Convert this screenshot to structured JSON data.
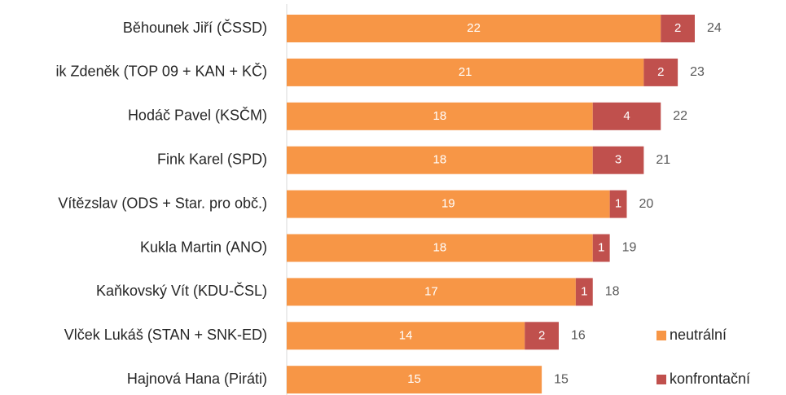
{
  "chart_data": {
    "type": "stacked_barh",
    "categories": [
      "Běhounek Jiří (ČSSD)",
      "ik Zdeněk (TOP 09 + KAN + KČ)",
      "Hodáč Pavel (KSČM)",
      "Fink Karel (SPD)",
      "Vítězslav (ODS + Star. pro obč.)",
      "Kukla Martin (ANO)",
      "Kaňkovský Vít (KDU-ČSL)",
      "Vlček Lukáš (STAN + SNK-ED)",
      "Hajnová Hana (Piráti)"
    ],
    "series": [
      {
        "name": "neutrální",
        "color": "#F79646",
        "values": [
          22,
          21,
          18,
          18,
          19,
          18,
          17,
          14,
          15
        ]
      },
      {
        "name": "konfrontační",
        "color": "#C0504D",
        "values": [
          2,
          2,
          4,
          3,
          1,
          1,
          1,
          2,
          null
        ]
      }
    ],
    "totals": [
      24,
      23,
      22,
      21,
      20,
      19,
      18,
      16,
      15
    ],
    "xlim": [
      0,
      24
    ]
  }
}
